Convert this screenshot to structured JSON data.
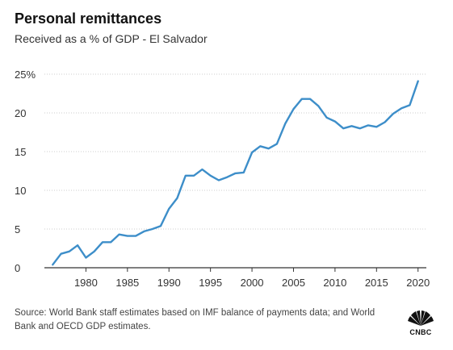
{
  "header": {
    "title": "Personal remittances",
    "subtitle": "Received as a % of GDP - El Salvador"
  },
  "footer": {
    "source": "Source: World Bank staff estimates based on IMF balance of payments data; and World Bank and OECD GDP estimates.",
    "logo_text": "CNBC"
  },
  "colors": {
    "line": "#3d8ec9",
    "grid": "#cccccc",
    "axis": "#333333"
  },
  "chart_data": {
    "type": "line",
    "title": "Personal remittances",
    "subtitle": "Received as a % of GDP - El Salvador",
    "xlabel": "",
    "ylabel": "",
    "xlim": [
      1975,
      2021
    ],
    "ylim": [
      0,
      25
    ],
    "grid": true,
    "x_ticks": [
      1980,
      1985,
      1990,
      1995,
      2000,
      2005,
      2010,
      2015,
      2020
    ],
    "y_ticks": [
      {
        "value": 25,
        "label": "25%"
      },
      {
        "value": 20,
        "label": "20"
      },
      {
        "value": 15,
        "label": "15"
      },
      {
        "value": 10,
        "label": "10"
      },
      {
        "value": 5,
        "label": "5"
      },
      {
        "value": 0,
        "label": "0"
      }
    ],
    "series": [
      {
        "x": [
          1976,
          1977,
          1978,
          1979,
          1980,
          1981,
          1982,
          1983,
          1984,
          1985,
          1986,
          1987,
          1988,
          1989,
          1990,
          1991,
          1992,
          1993,
          1994,
          1995,
          1996,
          1997,
          1998,
          1999,
          2000,
          2001,
          2002,
          2003,
          2004,
          2005,
          2006,
          2007,
          2008,
          2009,
          2010,
          2011,
          2012,
          2013,
          2014,
          2015,
          2016,
          2017,
          2018,
          2019,
          2020
        ],
        "y": [
          0.4,
          1.8,
          2.1,
          2.9,
          1.3,
          2.1,
          3.3,
          3.3,
          4.3,
          4.1,
          4.1,
          4.7,
          5.0,
          5.4,
          7.6,
          9.0,
          11.9,
          11.9,
          12.7,
          11.9,
          11.3,
          11.7,
          12.2,
          12.3,
          14.9,
          15.7,
          15.4,
          16.0,
          18.6,
          20.5,
          21.8,
          21.8,
          20.9,
          19.4,
          18.9,
          18.0,
          18.3,
          18.0,
          18.4,
          18.2,
          18.8,
          19.9,
          20.6,
          21.0,
          24.1
        ]
      }
    ]
  }
}
